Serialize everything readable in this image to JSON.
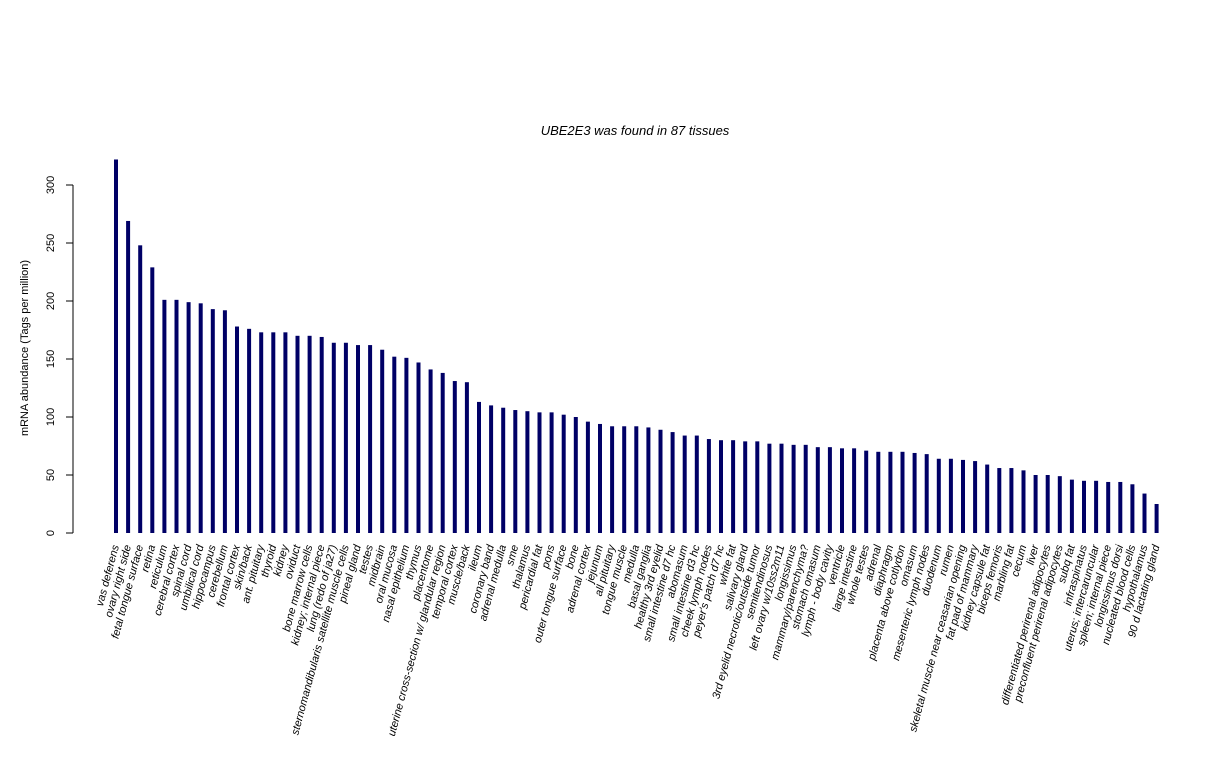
{
  "chart_data": {
    "type": "bar",
    "title": "UBE2E3  was found in  87  tissues",
    "xlabel": "",
    "ylabel": "mRNA abundance (Tags per million)",
    "ylim": [
      0,
      330
    ],
    "yticks": [
      0,
      50,
      100,
      150,
      200,
      250,
      300
    ],
    "grid": false,
    "bar_color": "#000066",
    "categories": [
      "vas deferens",
      "ovary right side",
      "fetal tongue surface",
      "retina",
      "reticulum",
      "cerebral cortex",
      "spinal cord",
      "umbilical cord",
      "hippocampus",
      "cerebellum",
      "frontal cortex",
      "skin/back",
      "ant. pituitary",
      "thyroid",
      "kidney",
      "oviduct",
      "bone marrow cells",
      "kidney; internal piece",
      "lung (redo of ja27)",
      "sternomandibularis satellite muscle cells",
      "pineal gland",
      "testes",
      "midbrain",
      "oral mucosa",
      "nasal epithelium",
      "thymus",
      "placentome",
      "uterine cross-section w/ glandular region",
      "temporal cortex",
      "muscle/back",
      "ileum",
      "coronary band",
      "adrenal medulla",
      "sme",
      "thalamus",
      "pericardial fat",
      "pons",
      "outer tongue surface",
      "bone",
      "adrenal cortex",
      "jejunum",
      "all pituitary",
      "tongue muscle",
      "medulla",
      "basal ganglia",
      "healthy 3rd eyelid",
      "small intestine d7 hc",
      "abomasum",
      "small intestine d3 hc",
      "cheek lymph nodes",
      "peyer's patch d7 hc",
      "white fat",
      "salivary gland",
      "3rd eyelid necrotic/outside tumor",
      "semitendinosus",
      "left ovary w/10ss2m11",
      "longissimus",
      "mammary/parenchyma?",
      "stomach omasum",
      "lymph - body cavity",
      "ventricle",
      "large intestine",
      "whole testes",
      "adrenal",
      "diaphragm",
      "placenta above cotlydon",
      "omasum",
      "mesenteric lymph nodes",
      "duodenum",
      "rumen",
      "skeletal muscle near ceasarian opening",
      "fat pad of mammary",
      "kidney capsule fat",
      "biceps femoris",
      "marbling fat",
      "cecum",
      "liver",
      "differentiated perirenal adipocytes",
      "preconfluent perirenal adipocytes",
      "subq fat",
      "infraspinatus",
      "uterus; intercaruncular",
      "spleen; internal piece",
      "longissimus dorsi",
      "nucleated blood cells",
      "hypothalamus",
      "90 d lactating gland"
    ],
    "values": [
      322,
      269,
      248,
      229,
      201,
      201,
      199,
      198,
      193,
      192,
      178,
      176,
      173,
      173,
      173,
      170,
      170,
      169,
      164,
      164,
      162,
      162,
      158,
      152,
      151,
      147,
      141,
      138,
      131,
      130,
      113,
      110,
      108,
      106,
      105,
      104,
      104,
      102,
      100,
      96,
      94,
      92,
      92,
      92,
      91,
      89,
      87,
      84,
      84,
      81,
      80,
      80,
      79,
      79,
      77,
      77,
      76,
      76,
      74,
      74,
      73,
      73,
      71,
      70,
      70,
      70,
      69,
      68,
      64,
      64,
      63,
      62,
      59,
      56,
      56,
      54,
      50,
      50,
      49,
      46,
      45,
      45,
      44,
      44,
      42,
      34,
      25
    ]
  }
}
